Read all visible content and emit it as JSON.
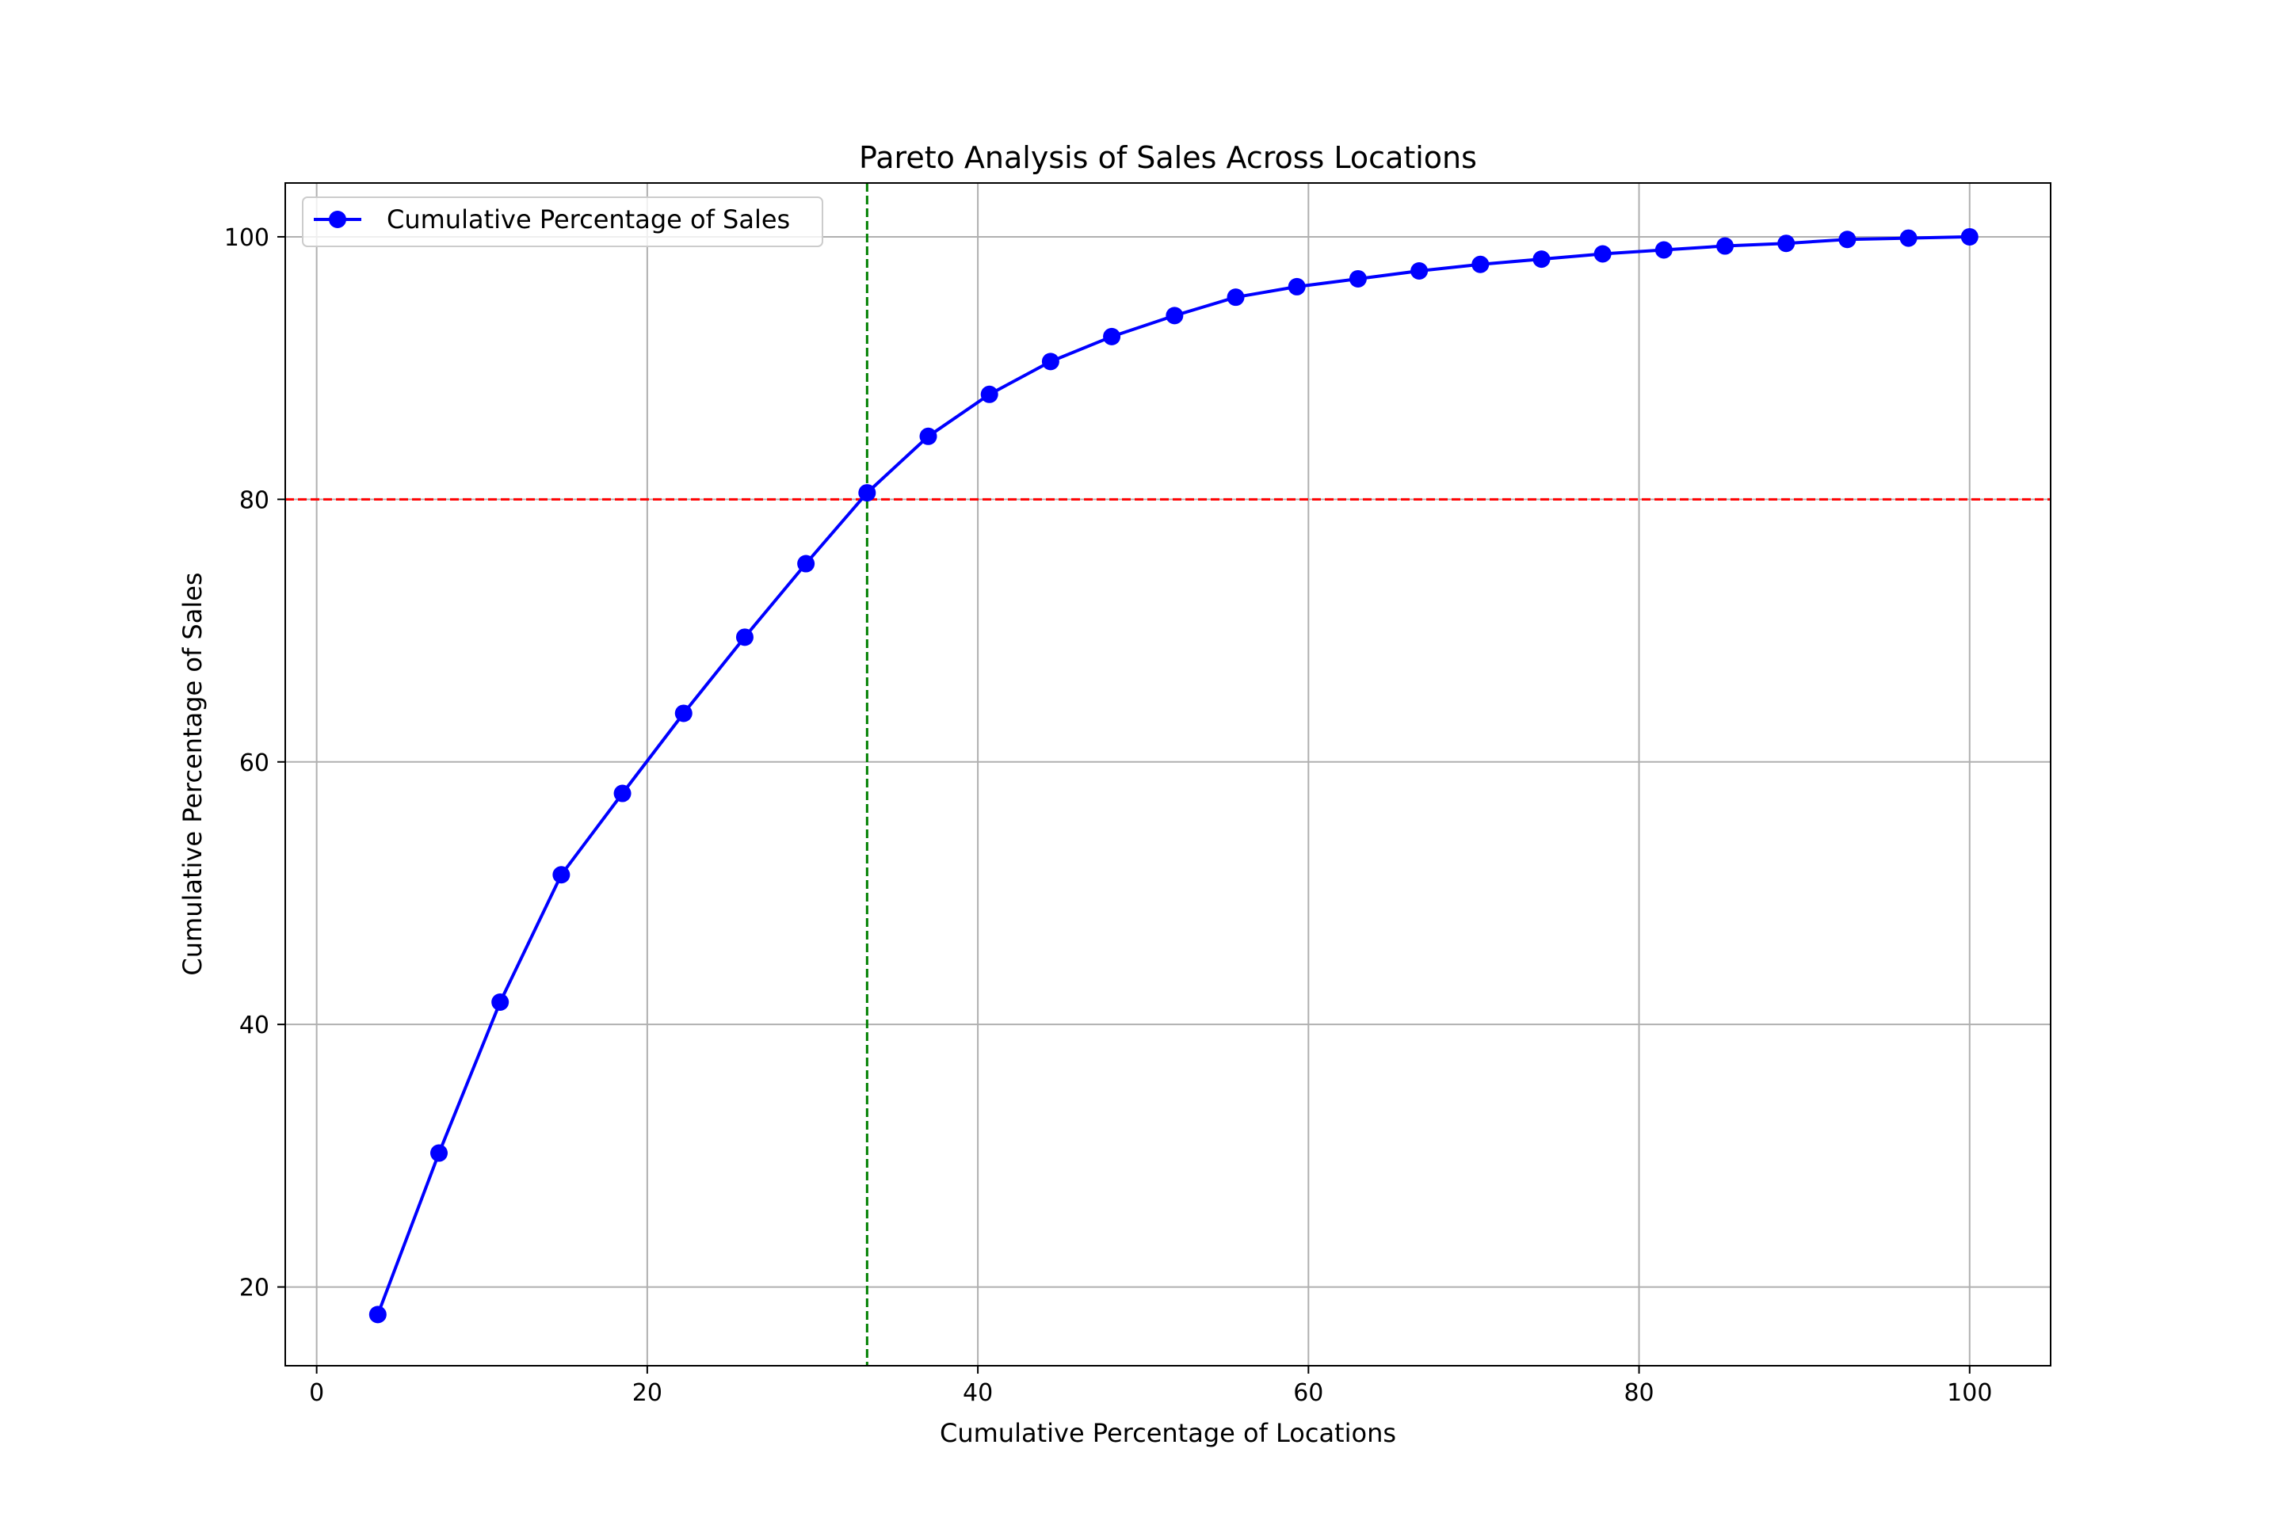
{
  "chart_data": {
    "type": "line",
    "title": "Pareto Analysis of Sales Across Locations",
    "xlabel": "Cumulative Percentage of Locations",
    "ylabel": "Cumulative Percentage of Sales",
    "xlim": [
      -1.9,
      104.9
    ],
    "ylim": [
      14.0,
      104.1
    ],
    "xticks": [
      0,
      20,
      40,
      60,
      80,
      100
    ],
    "yticks": [
      20,
      40,
      60,
      80,
      100
    ],
    "grid": true,
    "legend_position": "top-left",
    "series": [
      {
        "name": "Cumulative Percentage of Sales",
        "color": "#0000ff",
        "marker": "circle",
        "x": [
          3.7,
          7.4,
          11.1,
          14.8,
          18.5,
          22.2,
          25.9,
          29.6,
          33.3,
          37.0,
          40.7,
          44.4,
          48.1,
          51.9,
          55.6,
          59.3,
          63.0,
          66.7,
          70.4,
          74.1,
          77.8,
          81.5,
          85.2,
          88.9,
          92.6,
          96.3,
          100.0
        ],
        "y": [
          17.9,
          30.2,
          41.7,
          51.4,
          57.6,
          63.7,
          69.5,
          75.1,
          80.5,
          84.8,
          88.0,
          90.5,
          92.4,
          94.0,
          95.4,
          96.2,
          96.8,
          97.4,
          97.9,
          98.3,
          98.7,
          99.0,
          99.3,
          99.5,
          99.8,
          99.9,
          100.0
        ]
      }
    ],
    "reference_lines": [
      {
        "orientation": "horizontal",
        "value": 80,
        "color": "#ff0000",
        "style": "dashed"
      },
      {
        "orientation": "vertical",
        "value": 33.3,
        "color": "#008000",
        "style": "dashed"
      }
    ]
  }
}
